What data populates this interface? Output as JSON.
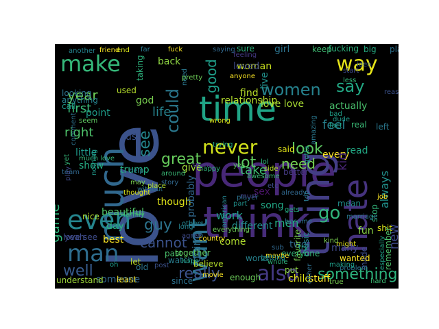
{
  "wordcloud": {
    "background": "#000000",
    "palette": "viridis",
    "words": [
      {
        "text": "love",
        "color": "#3b528b"
      },
      {
        "text": "people",
        "color": "#482878"
      },
      {
        "text": "think",
        "color": "#472c7a"
      },
      {
        "text": "thing",
        "color": "#433e85"
      },
      {
        "text": "time",
        "color": "#20a486"
      },
      {
        "text": "much",
        "color": "#31688e"
      },
      {
        "text": "hate",
        "color": "#46337f"
      },
      {
        "text": "even",
        "color": "#25858e"
      },
      {
        "text": "way",
        "color": "#e5e419"
      },
      {
        "text": "make",
        "color": "#35b779"
      },
      {
        "text": "women",
        "color": "#26828e"
      },
      {
        "text": "say",
        "color": "#22a884"
      },
      {
        "text": "good",
        "color": "#1f9e89"
      },
      {
        "text": "never",
        "color": "#d2e21b"
      },
      {
        "text": "want",
        "color": "#2c718e"
      },
      {
        "text": "also",
        "color": "#443983"
      },
      {
        "text": "could",
        "color": "#2a788e"
      },
      {
        "text": "see",
        "color": "#24868e"
      },
      {
        "text": "man",
        "color": "#2e6d8e"
      },
      {
        "text": "look",
        "color": "#5ec962"
      },
      {
        "text": "need",
        "color": "#75d054"
      },
      {
        "text": "go",
        "color": "#31b57b"
      },
      {
        "text": "really",
        "color": "#3b528b"
      },
      {
        "text": "something",
        "color": "#2db27d"
      },
      {
        "text": "life",
        "color": "#26828e"
      },
      {
        "text": "year",
        "color": "#6ece58"
      },
      {
        "text": "first",
        "color": "#3aba76"
      },
      {
        "text": "feel",
        "color": "#26818e"
      },
      {
        "text": "point",
        "color": "#1e9c89"
      },
      {
        "text": "relationship",
        "color": "#b5de2b"
      },
      {
        "text": "love love",
        "color": "#a8db34"
      },
      {
        "text": "actually",
        "color": "#4ac16d"
      },
      {
        "text": "right",
        "color": "#4ec36b"
      },
      {
        "text": "great",
        "color": "#67cc5c"
      },
      {
        "text": "lot",
        "color": "#5ec962"
      },
      {
        "text": "take",
        "color": "#3fbc73"
      },
      {
        "text": "guy",
        "color": "#2c738e"
      },
      {
        "text": "cannot",
        "color": "#3b528b"
      },
      {
        "text": "well",
        "color": "#375b8d"
      },
      {
        "text": "game",
        "color": "#2fb47c"
      },
      {
        "text": "work",
        "color": "#1fa088"
      },
      {
        "text": "going",
        "color": "#2e6f8e"
      },
      {
        "text": "men",
        "color": "#25ac82"
      },
      {
        "text": "different",
        "color": "#228d8d"
      },
      {
        "text": "song",
        "color": "#22a785"
      },
      {
        "text": "new",
        "color": "#3e4a89"
      },
      {
        "text": "always",
        "color": "#21918c"
      },
      {
        "text": "little",
        "color": "#1f998a"
      },
      {
        "text": "show",
        "color": "#25ac82"
      },
      {
        "text": "trump",
        "color": "#27ad81"
      },
      {
        "text": "day",
        "color": "#29af7f"
      },
      {
        "text": "beautiful",
        "color": "#52c569"
      },
      {
        "text": "best",
        "color": "#fde725"
      },
      {
        "text": "love see",
        "color": "#3e4c8a"
      },
      {
        "text": "someone",
        "color": "#31678e"
      },
      {
        "text": "though",
        "color": "#dfe318"
      },
      {
        "text": "probably",
        "color": "#31688e"
      },
      {
        "text": "come",
        "color": "#b0dd2f"
      },
      {
        "text": "world",
        "color": "#26828e"
      },
      {
        "text": "sex",
        "color": "#471365"
      },
      {
        "text": "two",
        "color": "#306a8e"
      },
      {
        "text": "many",
        "color": "#3f4889"
      },
      {
        "text": "said",
        "color": "#e2e418"
      },
      {
        "text": "every",
        "color": "#fde725"
      },
      {
        "text": "kid",
        "color": "#482576"
      },
      {
        "text": "better",
        "color": "#443a83"
      },
      {
        "text": "mean",
        "color": "#218e8d"
      },
      {
        "text": "made",
        "color": "#3c4f8a"
      },
      {
        "text": "shit",
        "color": "#d8e219"
      },
      {
        "text": "give",
        "color": "#a0da39"
      },
      {
        "text": "us",
        "color": "#3b528b"
      },
      {
        "text": "god",
        "color": "#7ad151"
      },
      {
        "text": "back",
        "color": "#90d743"
      },
      {
        "text": "woman",
        "color": "#cae11f"
      },
      {
        "text": "live",
        "color": "#21918c"
      },
      {
        "text": "find",
        "color": "#b8de29"
      },
      {
        "text": "sure",
        "color": "#2db27d"
      },
      {
        "text": "girl",
        "color": "#2c738e"
      },
      {
        "text": "keep",
        "color": "#3fbc73"
      },
      {
        "text": "read",
        "color": "#22a884"
      },
      {
        "text": "start",
        "color": "#3e4a89"
      },
      {
        "text": "idea",
        "color": "#355f8d"
      },
      {
        "text": "less",
        "color": "#35b779"
      },
      {
        "text": "reason",
        "color": "#3b528b"
      },
      {
        "text": "fact",
        "color": "#20a486"
      },
      {
        "text": "bad",
        "color": "#1fa088"
      },
      {
        "text": "real",
        "color": "#3aba76"
      },
      {
        "text": "left",
        "color": "#2a788e"
      },
      {
        "text": "dude",
        "color": "#1f998a"
      },
      {
        "text": "amazing",
        "color": "#2a778e"
      },
      {
        "text": "fun",
        "color": "#8bd646"
      },
      {
        "text": "true",
        "color": "#7ad151"
      },
      {
        "text": "hard",
        "color": "#3dbc74"
      },
      {
        "text": "stuff",
        "color": "#fde725"
      },
      {
        "text": "child",
        "color": "#e2e418"
      },
      {
        "text": "either",
        "color": "#2e6e8e"
      },
      {
        "text": "enough",
        "color": "#6ccd5a"
      },
      {
        "text": "believe",
        "color": "#b5de2b"
      },
      {
        "text": "least",
        "color": "#fde725"
      },
      {
        "text": "since",
        "color": "#2d718e"
      },
      {
        "text": "understand",
        "color": "#9fda3a"
      },
      {
        "text": "movie",
        "color": "#fde725"
      },
      {
        "text": "watch",
        "color": "#287c8e"
      },
      {
        "text": "hope",
        "color": "#22a785"
      },
      {
        "text": "past",
        "color": "#4ac16d"
      },
      {
        "text": "old",
        "color": "#2b758e"
      },
      {
        "text": "let",
        "color": "#bddf26"
      },
      {
        "text": "post",
        "color": "#3b518b"
      },
      {
        "text": "remember",
        "color": "#4ec36b"
      },
      {
        "text": "wanted",
        "color": "#fde725"
      },
      {
        "text": "problem",
        "color": "#2c728e"
      },
      {
        "text": "especially",
        "color": "#20a386"
      },
      {
        "text": "music",
        "color": "#25848e"
      },
      {
        "text": "kind",
        "color": "#7ad151"
      },
      {
        "text": "might",
        "color": "#e5e419"
      },
      {
        "text": "stop",
        "color": "#31b57b"
      },
      {
        "text": "marriage",
        "color": "#2a788e"
      },
      {
        "text": "job",
        "color": "#fde725"
      },
      {
        "text": "making",
        "color": "#1f9e89"
      },
      {
        "text": "favorite",
        "color": "#7ad151"
      },
      {
        "text": "everyone",
        "color": "#35b779"
      },
      {
        "text": "whole",
        "color": "#2db27d"
      },
      {
        "text": "put",
        "color": "#90d743"
      },
      {
        "text": "sub",
        "color": "#31688e"
      },
      {
        "text": "try",
        "color": "#22a785"
      },
      {
        "text": "maybe",
        "color": "#fde725"
      },
      {
        "text": "getting",
        "color": "#218e8d"
      },
      {
        "text": "together",
        "color": "#5ec962"
      },
      {
        "text": "others",
        "color": "#25848e"
      },
      {
        "text": "family",
        "color": "#3aba76"
      },
      {
        "text": "oh",
        "color": "#1f998a"
      },
      {
        "text": "nice",
        "color": "#b5de2b"
      },
      {
        "text": "yeah",
        "color": "#3e4a89"
      },
      {
        "text": "team",
        "color": "#31688e"
      },
      {
        "text": "another",
        "color": "#25838e"
      },
      {
        "text": "friend",
        "color": "#fde725"
      },
      {
        "text": "end",
        "color": "#d8e219"
      },
      {
        "text": "far",
        "color": "#2a788e"
      },
      {
        "text": "fuck",
        "color": "#fde725"
      },
      {
        "text": "saying",
        "color": "#31688e"
      },
      {
        "text": "feeling",
        "color": "#443983"
      },
      {
        "text": "fucking",
        "color": "#2db27d"
      },
      {
        "text": "big",
        "color": "#25ac82"
      },
      {
        "text": "playing",
        "color": "#2c728e"
      },
      {
        "text": "loved",
        "color": "#3e4a89"
      },
      {
        "text": "anyone",
        "color": "#fde725"
      },
      {
        "text": "need",
        "color": "#2a788e"
      },
      {
        "text": "pretty",
        "color": "#6ece58"
      },
      {
        "text": "taking",
        "color": "#2db27d"
      },
      {
        "text": "used",
        "color": "#b5de2b"
      },
      {
        "text": "looking",
        "color": "#2c728e"
      },
      {
        "text": "anything",
        "color": "#26828e"
      },
      {
        "text": "call",
        "color": "#1f998a"
      },
      {
        "text": "comment",
        "color": "#2d718e"
      },
      {
        "text": "seem",
        "color": "#5ec962"
      },
      {
        "text": "much love",
        "color": "#37b878"
      },
      {
        "text": "yet",
        "color": "#35b779"
      },
      {
        "text": "play",
        "color": "#3e4a89"
      },
      {
        "text": "help",
        "color": "#2a788e"
      },
      {
        "text": "nothing",
        "color": "#1f998a"
      },
      {
        "text": "may",
        "color": "#7ad151"
      },
      {
        "text": "without",
        "color": "#2c728e"
      },
      {
        "text": "thought",
        "color": "#d8e219"
      },
      {
        "text": "place",
        "color": "#b5de2b"
      },
      {
        "text": "around",
        "color": "#3aba76"
      },
      {
        "text": "story",
        "color": "#31688e"
      },
      {
        "text": "seen",
        "color": "#443983"
      },
      {
        "text": "trying",
        "color": "#22a785"
      },
      {
        "text": "happy",
        "color": "#2db27d"
      },
      {
        "text": "long",
        "color": "#26828e"
      },
      {
        "text": "agree",
        "color": "#3e4a89"
      },
      {
        "text": "country",
        "color": "#fde725"
      },
      {
        "text": "everything",
        "color": "#6ece58"
      },
      {
        "text": "american",
        "color": "#25848e"
      },
      {
        "text": "player",
        "color": "#2c728e"
      },
      {
        "text": "part",
        "color": "#21918c"
      },
      {
        "text": "must",
        "color": "#443983"
      },
      {
        "text": "lol",
        "color": "#2db27d"
      },
      {
        "text": "etc",
        "color": "#3e4a89"
      },
      {
        "text": "already",
        "color": "#31688e"
      },
      {
        "text": "gets",
        "color": "#25ac82"
      },
      {
        "text": "become",
        "color": "#2c728e"
      },
      {
        "text": "side",
        "color": "#b5de2b"
      },
      {
        "text": "top",
        "color": "#2a788e"
      },
      {
        "text": "gotta",
        "color": "#1f998a"
      },
      {
        "text": "awesome",
        "color": "#3aba76"
      },
      {
        "text": "yes",
        "color": "#5ec962"
      },
      {
        "text": "wrong",
        "color": "#d8e219"
      }
    ]
  }
}
